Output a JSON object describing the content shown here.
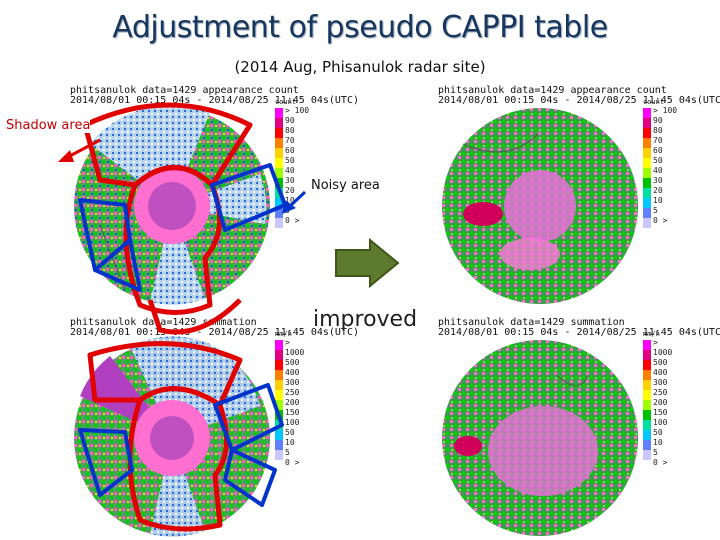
{
  "slide": {
    "title": "Adjustment of pseudo CAPPI table",
    "subtitle": "(2014 Aug, Phisanulok radar site)"
  },
  "labels": {
    "shadow": "Shadow area",
    "noisy": "Noisy area",
    "improved": "improved"
  },
  "panels": {
    "count_before": {
      "line1": "phitsanulok data=1429 appearance count",
      "line2": "2014/08/01 00:15 04s - 2014/08/25 11:45 04s(UTC)"
    },
    "count_after": {
      "line1": "phitsanulok data=1429 appearance count",
      "line2": "2014/08/01 00:15 04s - 2014/08/25 11:45 04s(UTC)"
    },
    "sum_before": {
      "line1": "phitsanulok data=1429 summation",
      "line2": "2014/08/01 00:15 04s - 2014/08/25 11:45 04s(UTC)"
    },
    "sum_after": {
      "line1": "phitsanulok data=1429 summation",
      "line2": "2014/08/01 00:15 04s - 2014/08/25 11:45 04s(UTC)"
    }
  },
  "colorbars": {
    "count": {
      "unit": "count",
      "ticks": [
        "> 100",
        "90",
        "80",
        "70",
        "60",
        "50",
        "40",
        "30",
        "20",
        "10",
        "5",
        "0 >"
      ],
      "colors": [
        "#ff00ff",
        "#e0007f",
        "#ff0000",
        "#ff8000",
        "#ffd000",
        "#ffff00",
        "#a0ff00",
        "#00c000",
        "#00e0a0",
        "#00c8ff",
        "#6080ff",
        "#c8c8ff"
      ]
    },
    "sum": {
      "unit": "mm/h",
      "ticks": [
        "> 1000",
        "500",
        "400",
        "300",
        "250",
        "200",
        "150",
        "100",
        "50",
        "10",
        "5",
        "0 >"
      ],
      "colors": [
        "#ff00ff",
        "#e0007f",
        "#ff0000",
        "#ff8000",
        "#ffd000",
        "#ffff00",
        "#a0ff00",
        "#00c000",
        "#00e0a0",
        "#00c8ff",
        "#6080ff",
        "#c8c8ff"
      ]
    }
  }
}
